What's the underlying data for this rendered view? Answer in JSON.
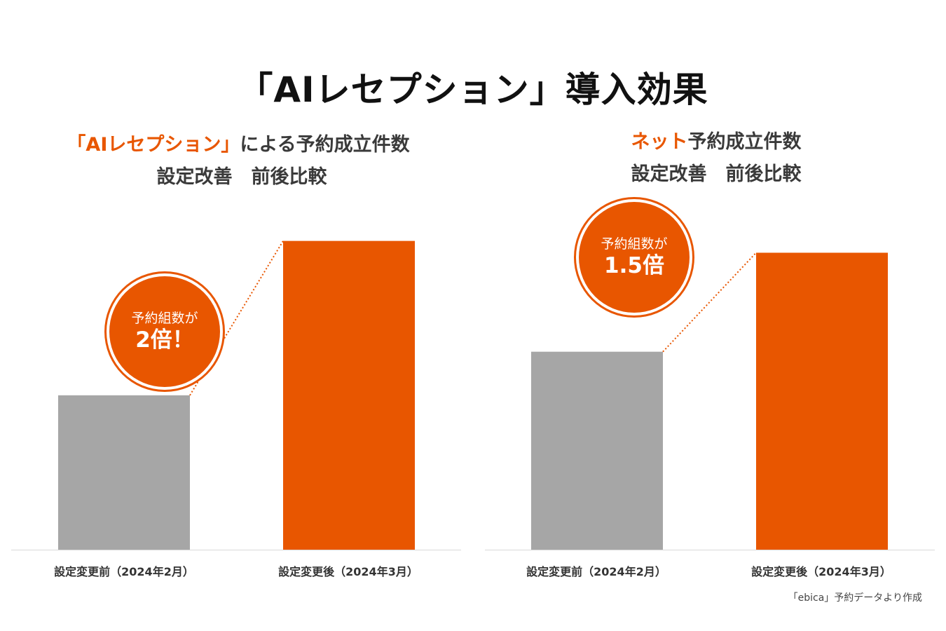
{
  "title": "「AIレセプション」導入効果",
  "left_panel": {
    "title_accent": "「AIレセプション」",
    "title_rest": "による予約成立件数",
    "subtitle": "設定改善　前後比較",
    "badge_small": "予約組数が",
    "badge_big": "2倍！"
  },
  "right_panel": {
    "title_accent": "ネット",
    "title_rest": "予約成立件数",
    "subtitle": "設定改善　前後比較",
    "badge_small": "予約組数が",
    "badge_big": "1.5倍"
  },
  "source_note": "「ebica」予約データより作成",
  "colors": {
    "before": "#a6a6a6",
    "after": "#e85600",
    "accent": "#e85600",
    "baseline": "#d9d9d9"
  },
  "chart_data": [
    {
      "type": "bar",
      "categories": [
        "設定変更前（2024年2月）",
        "設定変更後（2024年3月）"
      ],
      "values": [
        1,
        2
      ],
      "ylim": [
        0,
        2.18
      ],
      "grid": false,
      "legend": "none",
      "annotation": "予約組数が2倍！"
    },
    {
      "type": "bar",
      "categories": [
        "設定変更前（2024年2月）",
        "設定変更後（2024年3月）"
      ],
      "values": [
        1,
        1.5
      ],
      "ylim": [
        0,
        1.7
      ],
      "grid": false,
      "legend": "none",
      "annotation": "予約組数が1.5倍"
    }
  ]
}
